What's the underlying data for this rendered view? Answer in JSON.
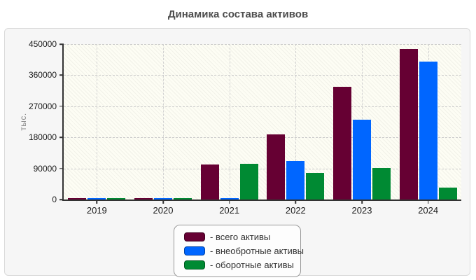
{
  "title": "Динамика состава активов",
  "chart_data": {
    "type": "bar",
    "title": "Динамика состава активов",
    "categories": [
      "2019",
      "2020",
      "2021",
      "2022",
      "2023",
      "2024"
    ],
    "series": [
      {
        "name": "всего активы",
        "legend_label": "- всего активы",
        "color": "#660033",
        "values": [
          4000,
          5000,
          101000,
          188000,
          326000,
          436000
        ]
      },
      {
        "name": "внеобротные активы",
        "legend_label": "- внеобротные активы",
        "color": "#0066ff",
        "values": [
          2500,
          3000,
          2500,
          112000,
          232000,
          399000
        ]
      },
      {
        "name": "оборотные активы",
        "legend_label": "- оборотные активы",
        "color": "#008a33",
        "values": [
          2500,
          3000,
          103000,
          77000,
          91000,
          34000
        ]
      }
    ],
    "xlabel": "",
    "ylabel": "тыс.",
    "ylim": [
      0,
      450000
    ],
    "yticks": [
      0,
      90000,
      180000,
      270000,
      360000,
      450000
    ],
    "grid": "dashed",
    "legend_position": "bottom-center"
  },
  "colors": {
    "bar_total": "#660033",
    "bar_noncurrent": "#0066ff",
    "bar_current": "#008a33",
    "axis": "#333333",
    "grid": "#cccccc",
    "card_bg": "#f6f6f6",
    "card_border": "#d9d9d9",
    "plot_bg": "#fdfdf4",
    "legend_border": "#999999",
    "title_text": "#4d4d4d"
  }
}
